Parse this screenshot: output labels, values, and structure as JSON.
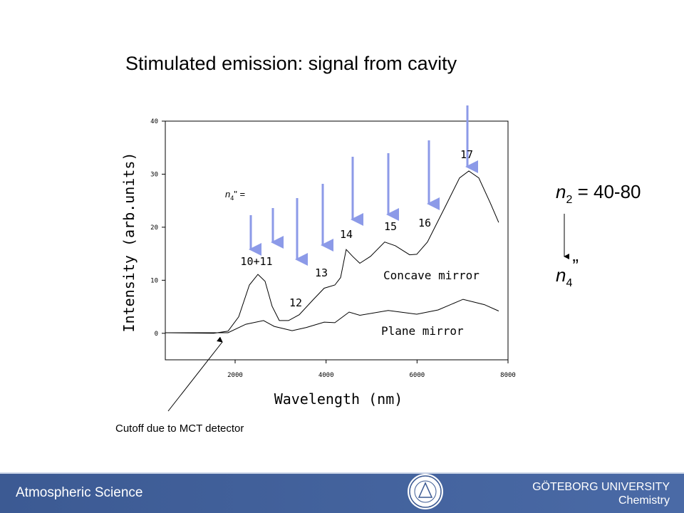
{
  "title": "Stimulated emission: signal from cavity",
  "chart_data": {
    "type": "line",
    "xlabel": "Wavelength (nm)",
    "ylabel": "Intensity (arb.units)",
    "xlim": [
      465,
      8000
    ],
    "ylim": [
      -5,
      40
    ],
    "xticks": [
      2000,
      4000,
      6000,
      8000
    ],
    "yticks": [
      0,
      10,
      20,
      30,
      40
    ],
    "series": [
      {
        "name": "Concave mirror",
        "color": "#000000",
        "x": [
          465,
          1530,
          1843,
          2078,
          2313,
          2501,
          2658,
          2814,
          2971,
          3175,
          3410,
          3723,
          3958,
          4193,
          4318,
          4443,
          4584,
          4741,
          4976,
          5289,
          5524,
          5837,
          5994,
          6229,
          6386,
          6621,
          6934,
          7138,
          7357,
          7608,
          7795
        ],
        "values": [
          0.1,
          0,
          0.4,
          3.1,
          9.1,
          11.1,
          9.8,
          5.1,
          2.4,
          2.4,
          3.5,
          6.4,
          8.5,
          9.1,
          10.5,
          15.8,
          14.5,
          13.2,
          14.5,
          17.2,
          16.5,
          14.8,
          14.9,
          17.2,
          19.9,
          23.9,
          29.3,
          30.6,
          29.3,
          24.6,
          20.9
        ]
      },
      {
        "name": "Plane mirror",
        "color": "#000000",
        "x": [
          465,
          1843,
          2235,
          2626,
          2861,
          3253,
          3566,
          3958,
          4193,
          4506,
          4741,
          5367,
          5994,
          6464,
          7012,
          7482,
          7795
        ],
        "values": [
          0.1,
          0.1,
          1.7,
          2.4,
          1.3,
          0.5,
          1.1,
          2.1,
          2.0,
          4.0,
          3.4,
          4.3,
          3.6,
          4.4,
          6.4,
          5.4,
          4.2
        ]
      }
    ],
    "annotations": [
      "10+11",
      "12",
      "13",
      "14",
      "15",
      "16",
      "17"
    ],
    "n4_label": {
      "base": "n",
      "sub": "4",
      "rest": "\" ="
    }
  },
  "side_note": {
    "top": {
      "base": "n",
      "sub": "2",
      "rest": " = 40-80"
    },
    "bottom": {
      "base": "n",
      "sub": "4",
      "rest": "”"
    }
  },
  "cutoff_note": "Cutoff due to MCT detector",
  "footer": {
    "left": "Atmospheric Science",
    "university": "GÖTEBORG UNIVERSITY",
    "department": "Chemistry"
  }
}
